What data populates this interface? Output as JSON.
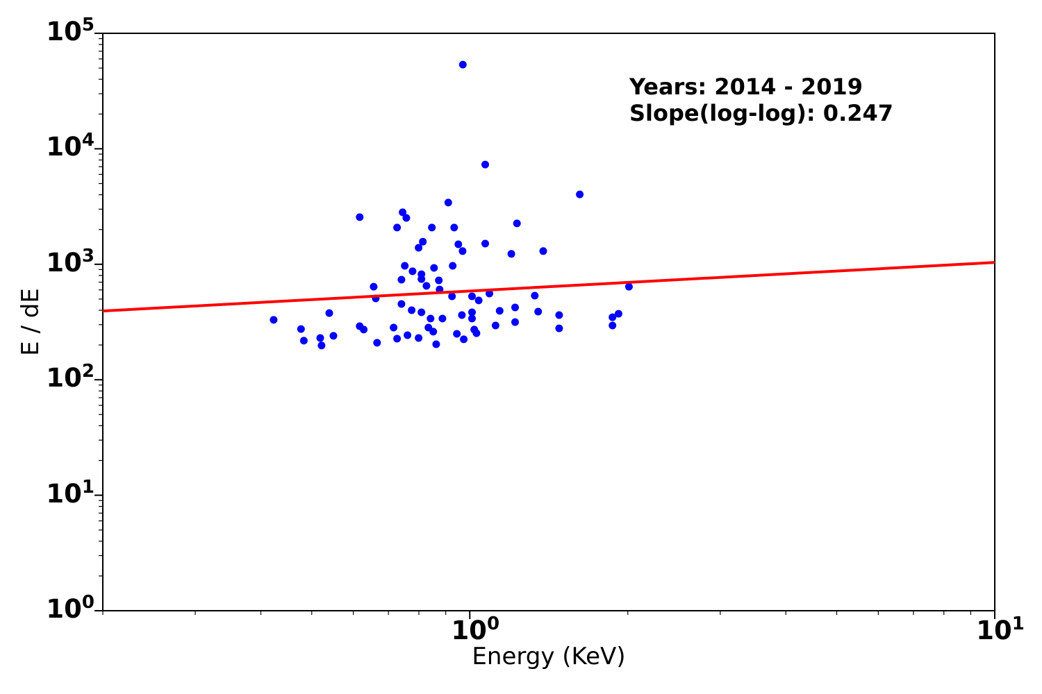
{
  "figure": {
    "background": "#ffffff",
    "axis_color": "#000000"
  },
  "chart_data": {
    "type": "scatter",
    "title": "",
    "xlabel": "Energy (KeV)",
    "ylabel": "E / dE",
    "xscale": "log",
    "yscale": "log",
    "xlim": [
      0.2,
      10
    ],
    "ylim": [
      1,
      100000
    ],
    "grid": false,
    "legend": null,
    "log_base": "10",
    "x_tick_exponents": [
      0,
      1
    ],
    "y_tick_exponents": [
      0,
      1,
      2,
      3,
      4,
      5
    ],
    "x_minor_ticks": [
      0.2,
      0.3,
      0.4,
      0.5,
      0.6,
      0.7,
      0.8,
      0.9,
      2,
      3,
      4,
      5,
      6,
      7,
      8,
      9
    ],
    "annotation": {
      "line1": "Years: 2014 - 2019",
      "line2": "Slope(log-log): 0.247"
    },
    "years_range": "2014 - 2019",
    "slope_loglog": 0.247,
    "marker_color": "#0000ff",
    "marker_radius": 5.5,
    "line_color": "#ff0000",
    "line_width": 4,
    "trendline": {
      "x": [
        0.2,
        10
      ],
      "y": [
        394,
        1037
      ]
    },
    "scatter": [
      [
        0.97,
        53600
      ],
      [
        1.07,
        7300
      ],
      [
        1.62,
        4030
      ],
      [
        0.91,
        3420
      ],
      [
        0.617,
        2560
      ],
      [
        0.745,
        2820
      ],
      [
        0.757,
        2520
      ],
      [
        0.727,
        2080
      ],
      [
        0.847,
        2080
      ],
      [
        0.934,
        2080
      ],
      [
        1.23,
        2260
      ],
      [
        0.814,
        1570
      ],
      [
        0.799,
        1390
      ],
      [
        0.951,
        1490
      ],
      [
        0.969,
        1300
      ],
      [
        1.07,
        1510
      ],
      [
        1.2,
        1230
      ],
      [
        1.38,
        1300
      ],
      [
        0.752,
        970
      ],
      [
        0.778,
        870
      ],
      [
        0.809,
        820
      ],
      [
        0.809,
        745
      ],
      [
        0.855,
        930
      ],
      [
        0.928,
        970
      ],
      [
        0.741,
        735
      ],
      [
        0.827,
        650
      ],
      [
        0.873,
        725
      ],
      [
        0.876,
        605
      ],
      [
        0.925,
        528
      ],
      [
        0.656,
        640
      ],
      [
        0.662,
        506
      ],
      [
        1.01,
        528
      ],
      [
        1.04,
        486
      ],
      [
        1.09,
        558
      ],
      [
        1.33,
        535
      ],
      [
        2.01,
        640
      ],
      [
        0.741,
        453
      ],
      [
        0.775,
        400
      ],
      [
        0.809,
        384
      ],
      [
        0.842,
        339
      ],
      [
        0.887,
        339
      ],
      [
        0.966,
        363
      ],
      [
        1.01,
        384
      ],
      [
        1.01,
        339
      ],
      [
        1.14,
        395
      ],
      [
        1.22,
        423
      ],
      [
        1.12,
        295
      ],
      [
        1.22,
        316
      ],
      [
        1.35,
        389
      ],
      [
        1.48,
        363
      ],
      [
        1.48,
        279
      ],
      [
        1.87,
        348
      ],
      [
        1.92,
        373
      ],
      [
        1.87,
        295
      ],
      [
        0.423,
        330
      ],
      [
        0.477,
        275
      ],
      [
        0.483,
        218
      ],
      [
        0.519,
        230
      ],
      [
        0.522,
        198
      ],
      [
        0.54,
        378
      ],
      [
        0.55,
        240
      ],
      [
        0.617,
        291
      ],
      [
        0.628,
        272
      ],
      [
        0.666,
        209
      ],
      [
        0.716,
        283
      ],
      [
        0.727,
        227
      ],
      [
        0.761,
        243
      ],
      [
        0.799,
        230
      ],
      [
        0.834,
        283
      ],
      [
        0.852,
        261
      ],
      [
        0.863,
        203
      ],
      [
        0.945,
        250
      ],
      [
        0.974,
        224
      ],
      [
        1.02,
        272
      ],
      [
        1.03,
        253
      ]
    ]
  }
}
